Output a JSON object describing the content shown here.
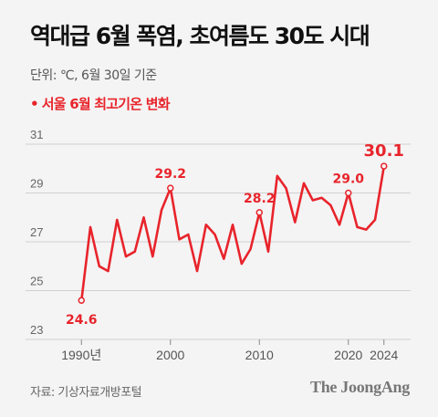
{
  "header": {
    "title": "역대급 6월 폭염, 초여름도 30도 시대",
    "unit": "단위: ℃, 6월 30일 기준"
  },
  "legend": {
    "label": "서울 6월 최고기온 변화",
    "bullet": "•"
  },
  "footer": {
    "source": "자료: 기상자료개방포털",
    "brand": "The JoongAng"
  },
  "colors": {
    "line": "#e8242b",
    "grid": "#d0d0d0",
    "background": "#f4f4f4"
  },
  "chart_data": {
    "type": "line",
    "title": "",
    "xlabel": "",
    "ylabel": "",
    "ylim": [
      23,
      31
    ],
    "yticks": [
      23,
      25,
      27,
      29,
      31
    ],
    "xticks": [
      {
        "x": 1990,
        "label": "1990년"
      },
      {
        "x": 2000,
        "label": "2000"
      },
      {
        "x": 2010,
        "label": "2010"
      },
      {
        "x": 2020,
        "label": "2020"
      },
      {
        "x": 2024,
        "label": "2024"
      }
    ],
    "grid": true,
    "series": [
      {
        "name": "서울 6월 최고기온",
        "x": [
          1990,
          1991,
          1992,
          1993,
          1994,
          1995,
          1996,
          1997,
          1998,
          1999,
          2000,
          2001,
          2002,
          2003,
          2004,
          2005,
          2006,
          2007,
          2008,
          2009,
          2010,
          2011,
          2012,
          2013,
          2014,
          2015,
          2016,
          2017,
          2018,
          2019,
          2020,
          2021,
          2022,
          2023,
          2024
        ],
        "y": [
          24.6,
          27.6,
          26.0,
          25.8,
          27.9,
          26.4,
          26.6,
          28.0,
          26.4,
          28.3,
          29.2,
          27.1,
          27.3,
          25.8,
          27.7,
          27.3,
          26.3,
          27.7,
          26.1,
          26.7,
          28.2,
          26.6,
          29.7,
          29.2,
          27.8,
          29.4,
          28.7,
          28.8,
          28.5,
          27.7,
          29.0,
          27.6,
          27.5,
          27.9,
          30.1
        ]
      }
    ],
    "annotations": [
      {
        "x": 1990,
        "y": 24.6,
        "label": "24.6"
      },
      {
        "x": 2000,
        "y": 29.2,
        "label": "29.2"
      },
      {
        "x": 2010,
        "y": 28.2,
        "label": "28.2"
      },
      {
        "x": 2020,
        "y": 29.0,
        "label": "29.0"
      },
      {
        "x": 2024,
        "y": 30.1,
        "label": "30.1"
      }
    ]
  }
}
